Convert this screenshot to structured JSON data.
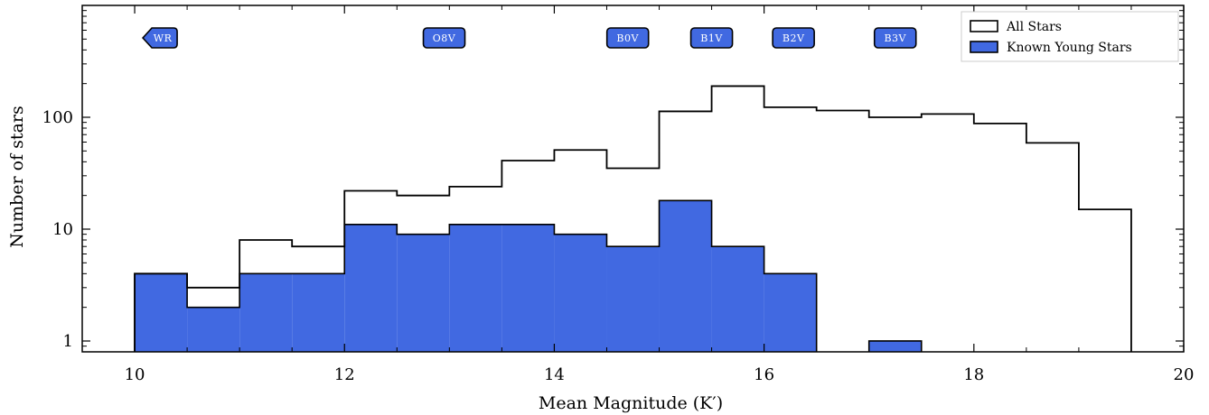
{
  "chart_data": {
    "type": "histogram",
    "xlabel": "Mean Magnitude (K′)",
    "ylabel": "Number of stars",
    "xlim": [
      9.5,
      20
    ],
    "ylim": [
      0.8,
      1000
    ],
    "yscale": "log",
    "x_ticks": [
      "10",
      "12",
      "14",
      "16",
      "18",
      "20"
    ],
    "y_ticks": [
      "1",
      "10",
      "100"
    ],
    "bin_edges": [
      10,
      10.5,
      11,
      11.5,
      12,
      12.5,
      13,
      13.5,
      14,
      14.5,
      15,
      15.5,
      16,
      16.5,
      17,
      17.5,
      18,
      18.5,
      19,
      19.5
    ],
    "series": [
      {
        "name": "All Stars",
        "style": "step-outline",
        "color": "#000000",
        "values": [
          4,
          3,
          8,
          7,
          22,
          20,
          24,
          41,
          51,
          35,
          113,
          190,
          123,
          115,
          100,
          107,
          88,
          59,
          15
        ]
      },
      {
        "name": "Known Young Stars",
        "style": "filled",
        "color": "#4169e1",
        "values": [
          4,
          2,
          4,
          4,
          11,
          9,
          11,
          11,
          9,
          7,
          18,
          7,
          4,
          0,
          1,
          0,
          0,
          0,
          0
        ]
      }
    ],
    "legend": {
      "position": "top-right",
      "entries": [
        "All Stars",
        "Known Young Stars"
      ]
    },
    "annotations": [
      {
        "text": "WR",
        "x": 10.25,
        "shape": "arrow-left"
      },
      {
        "text": "O8V",
        "x": 12.95,
        "shape": "box"
      },
      {
        "text": "B0V",
        "x": 14.7,
        "shape": "box"
      },
      {
        "text": "B1V",
        "x": 15.5,
        "shape": "box"
      },
      {
        "text": "B2V",
        "x": 16.28,
        "shape": "box"
      },
      {
        "text": "B3V",
        "x": 17.25,
        "shape": "box"
      }
    ],
    "annotation_color": "#4169e1"
  }
}
